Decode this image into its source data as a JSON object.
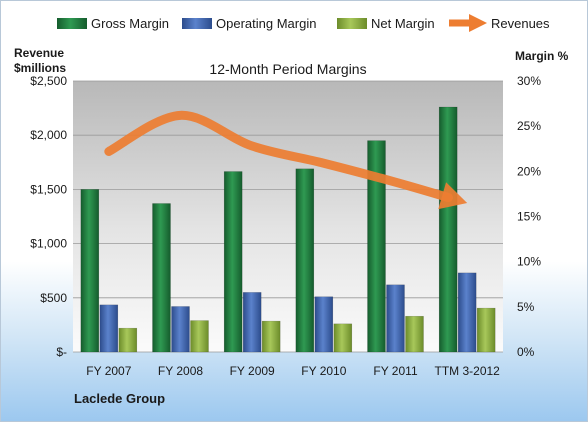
{
  "chart_data": {
    "type": "bar",
    "title": "12-Month Period Margins",
    "company_label": "Laclede Group",
    "y_left_label_line1": "Revenue",
    "y_left_label_line2": "$millions",
    "y_right_label": "Margin %",
    "categories": [
      "FY 2007",
      "FY 2008",
      "FY 2009",
      "FY 2010",
      "FY 2011",
      "TTM 3-2012"
    ],
    "ylim_left": [
      0,
      2500
    ],
    "ylim_right": [
      0,
      30
    ],
    "y_left_ticks": [
      0,
      500,
      1000,
      1500,
      2000,
      2500
    ],
    "y_left_tick_labels": [
      "$-",
      "$500",
      "$1,000",
      "$1,500",
      "$2,000",
      "$2,500"
    ],
    "y_right_ticks": [
      0,
      5,
      10,
      15,
      20,
      25,
      30
    ],
    "y_right_tick_labels": [
      "0%",
      "5%",
      "10%",
      "15%",
      "20%",
      "25%",
      "30%"
    ],
    "grid": true,
    "legend_position": "top",
    "series": [
      {
        "name": "Gross Margin",
        "type": "bar",
        "axis": "left",
        "color": "#1e7a3e",
        "values": [
          1500,
          1370,
          1665,
          1690,
          1950,
          2260
        ]
      },
      {
        "name": "Operating Margin",
        "type": "bar",
        "axis": "left",
        "color": "#3f66b0",
        "values": [
          435,
          420,
          550,
          510,
          620,
          730
        ]
      },
      {
        "name": "Net Margin",
        "type": "bar",
        "axis": "left",
        "color": "#8fb040",
        "values": [
          220,
          290,
          285,
          260,
          330,
          405
        ]
      },
      {
        "name": "Revenues",
        "type": "line",
        "axis": "right",
        "color": "#ed7d31",
        "values": [
          22.2,
          26.2,
          22.8,
          20.9,
          18.8,
          16.5
        ]
      }
    ]
  }
}
